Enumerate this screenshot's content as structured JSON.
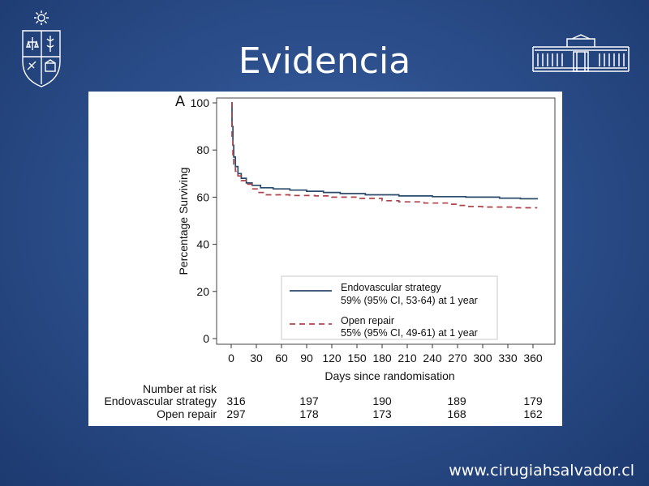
{
  "slide": {
    "title": "Evidencia",
    "footer_url": "www.cirugiahsalvador.cl"
  },
  "chart_data": {
    "type": "line",
    "panel_label": "A",
    "xlabel": "Days since randomisation",
    "ylabel": "Percentage Surviving",
    "xlim": [
      0,
      365
    ],
    "ylim": [
      0,
      100
    ],
    "xticks": [
      0,
      30,
      60,
      90,
      120,
      150,
      180,
      210,
      240,
      270,
      300,
      330,
      360
    ],
    "yticks": [
      0,
      20,
      40,
      60,
      80,
      100
    ],
    "legend_position": "lower-right",
    "series": [
      {
        "name": "Endovascular strategy",
        "legend_note": "59% (95% CI, 53-64) at 1 year",
        "style": "solid",
        "color": "#2a4a6b",
        "points": [
          [
            0,
            100
          ],
          [
            1,
            90
          ],
          [
            2,
            82
          ],
          [
            3,
            77
          ],
          [
            5,
            73
          ],
          [
            8,
            70
          ],
          [
            12,
            68
          ],
          [
            18,
            66
          ],
          [
            25,
            65
          ],
          [
            35,
            64
          ],
          [
            50,
            63.5
          ],
          [
            70,
            63
          ],
          [
            90,
            62.5
          ],
          [
            110,
            62
          ],
          [
            130,
            61.5
          ],
          [
            160,
            61
          ],
          [
            200,
            60.5
          ],
          [
            240,
            60.2
          ],
          [
            280,
            60
          ],
          [
            320,
            59.6
          ],
          [
            345,
            59.3
          ],
          [
            365,
            59
          ]
        ]
      },
      {
        "name": "Open repair",
        "legend_note": "55% (95% CI, 49-61) at 1 year",
        "style": "dashed",
        "color": "#b0444a",
        "points": [
          [
            0,
            100
          ],
          [
            1,
            84
          ],
          [
            2,
            78
          ],
          [
            3,
            74
          ],
          [
            5,
            71
          ],
          [
            8,
            69
          ],
          [
            12,
            67
          ],
          [
            18,
            65.5
          ],
          [
            25,
            63.5
          ],
          [
            32,
            62
          ],
          [
            40,
            61
          ],
          [
            70,
            60.7
          ],
          [
            100,
            60.5
          ],
          [
            120,
            60
          ],
          [
            150,
            59.5
          ],
          [
            180,
            58.5
          ],
          [
            200,
            58
          ],
          [
            230,
            57.5
          ],
          [
            260,
            57
          ],
          [
            270,
            56.5
          ],
          [
            280,
            56
          ],
          [
            300,
            55.8
          ],
          [
            340,
            55.5
          ],
          [
            365,
            55.5
          ]
        ]
      }
    ],
    "risk_table": {
      "header": "Number at risk",
      "days": [
        0,
        90,
        180,
        270,
        360
      ],
      "rows": [
        {
          "label": "Endovascular strategy",
          "values": [
            316,
            197,
            190,
            189,
            179
          ]
        },
        {
          "label": "Open repair",
          "values": [
            297,
            178,
            173,
            168,
            162
          ]
        }
      ]
    }
  }
}
